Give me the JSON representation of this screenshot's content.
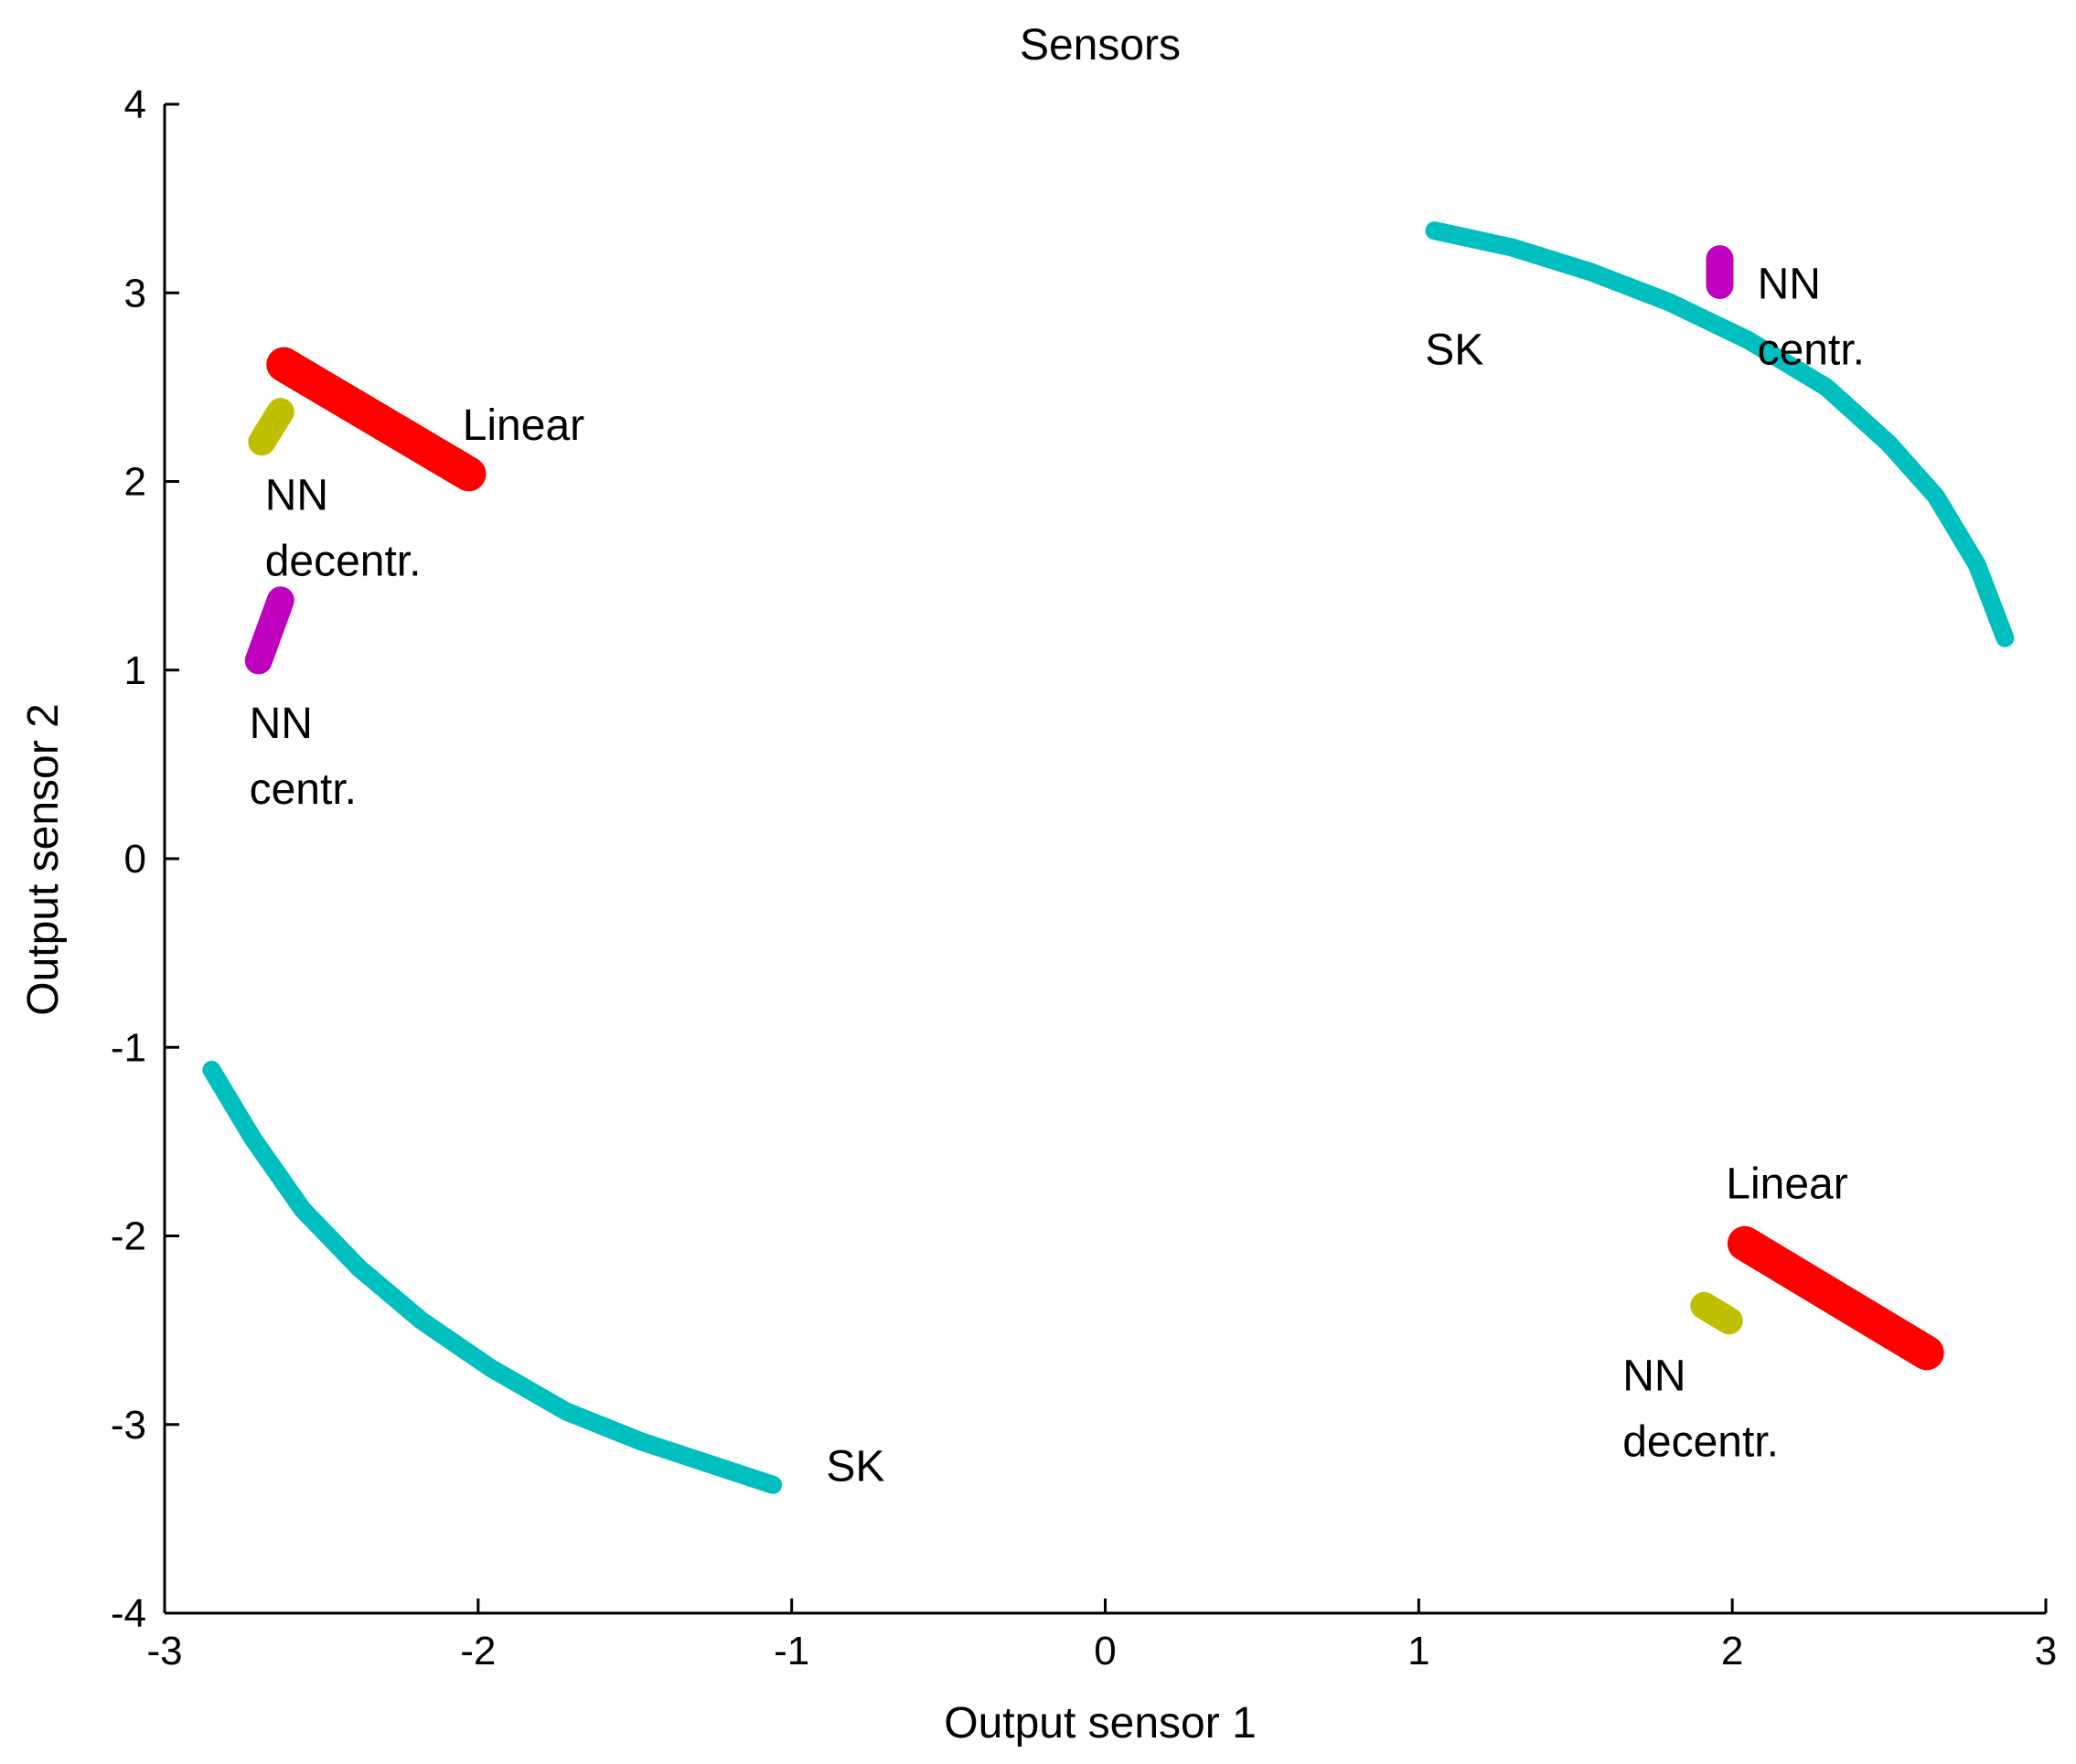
{
  "chart_data": {
    "type": "scatter",
    "title": "Sensors",
    "xlabel": "Output sensor 1",
    "ylabel": "Output sensor 2",
    "xlim": [
      -3,
      3
    ],
    "ylim": [
      -4,
      4
    ],
    "xticks": [
      "-3",
      "-2",
      "-1",
      "0",
      "1",
      "2",
      "3"
    ],
    "yticks": [
      "4",
      "3",
      "2",
      "1",
      "0",
      "-1",
      "-2",
      "-3",
      "-4"
    ],
    "grid": false,
    "series": [
      {
        "kind": "arc",
        "color": "#00bfbf",
        "clusters": [
          {
            "x": [
              1.05,
              1.3,
              1.55,
              1.8,
              2.05,
              2.3,
              2.5,
              2.65,
              2.78,
              2.87
            ],
            "y": [
              3.33,
              3.24,
              3.11,
              2.95,
              2.75,
              2.5,
              2.2,
              1.92,
              1.56,
              1.17
            ]
          },
          {
            "x": [
              -2.85,
              -2.72,
              -2.56,
              -2.38,
              -2.18,
              -1.96,
              -1.72,
              -1.48,
              -1.26,
              -1.06
            ],
            "y": [
              -1.12,
              -1.48,
              -1.86,
              -2.17,
              -2.45,
              -2.7,
              -2.93,
              -3.09,
              -3.21,
              -3.32
            ]
          }
        ]
      },
      {
        "kind": "bar",
        "color": "#ff0000",
        "clusters": [
          {
            "x": [
              -2.62,
              -2.03
            ],
            "y": [
              2.62,
              2.04
            ]
          },
          {
            "x": [
              2.04,
              2.62
            ],
            "y": [
              -2.04,
              -2.62
            ]
          }
        ]
      },
      {
        "kind": "blob",
        "color": "#bfbf00",
        "clusters": [
          {
            "x": [
              -2.69,
              -2.63
            ],
            "y": [
              2.21,
              2.37
            ]
          },
          {
            "x": [
              1.91,
              1.99
            ],
            "y": [
              -2.37,
              -2.45
            ]
          }
        ]
      },
      {
        "kind": "blob",
        "color": "#bf00bf",
        "clusters": [
          {
            "x": [
              -2.7,
              -2.63
            ],
            "y": [
              1.05,
              1.37
            ]
          },
          {
            "x": [
              1.96,
              1.96
            ],
            "y": [
              3.04,
              3.18
            ]
          }
        ]
      }
    ],
    "annotations": [
      {
        "lines": [
          "SK"
        ],
        "x": 1.02,
        "y": 2.62
      },
      {
        "lines": [
          "NN",
          "centr."
        ],
        "x": 2.08,
        "y": 2.97
      },
      {
        "lines": [
          "Linear"
        ],
        "x": -2.05,
        "y": 2.22
      },
      {
        "lines": [
          "NN",
          "decentr."
        ],
        "x": -2.68,
        "y": 1.85
      },
      {
        "lines": [
          "NN",
          "centr."
        ],
        "x": -2.73,
        "y": 0.64
      },
      {
        "lines": [
          "Linear"
        ],
        "x": 1.98,
        "y": -1.8
      },
      {
        "lines": [
          "NN",
          "decentr."
        ],
        "x": 1.65,
        "y": -2.82
      },
      {
        "lines": [
          "SK"
        ],
        "x": -0.89,
        "y": -3.3
      }
    ]
  }
}
